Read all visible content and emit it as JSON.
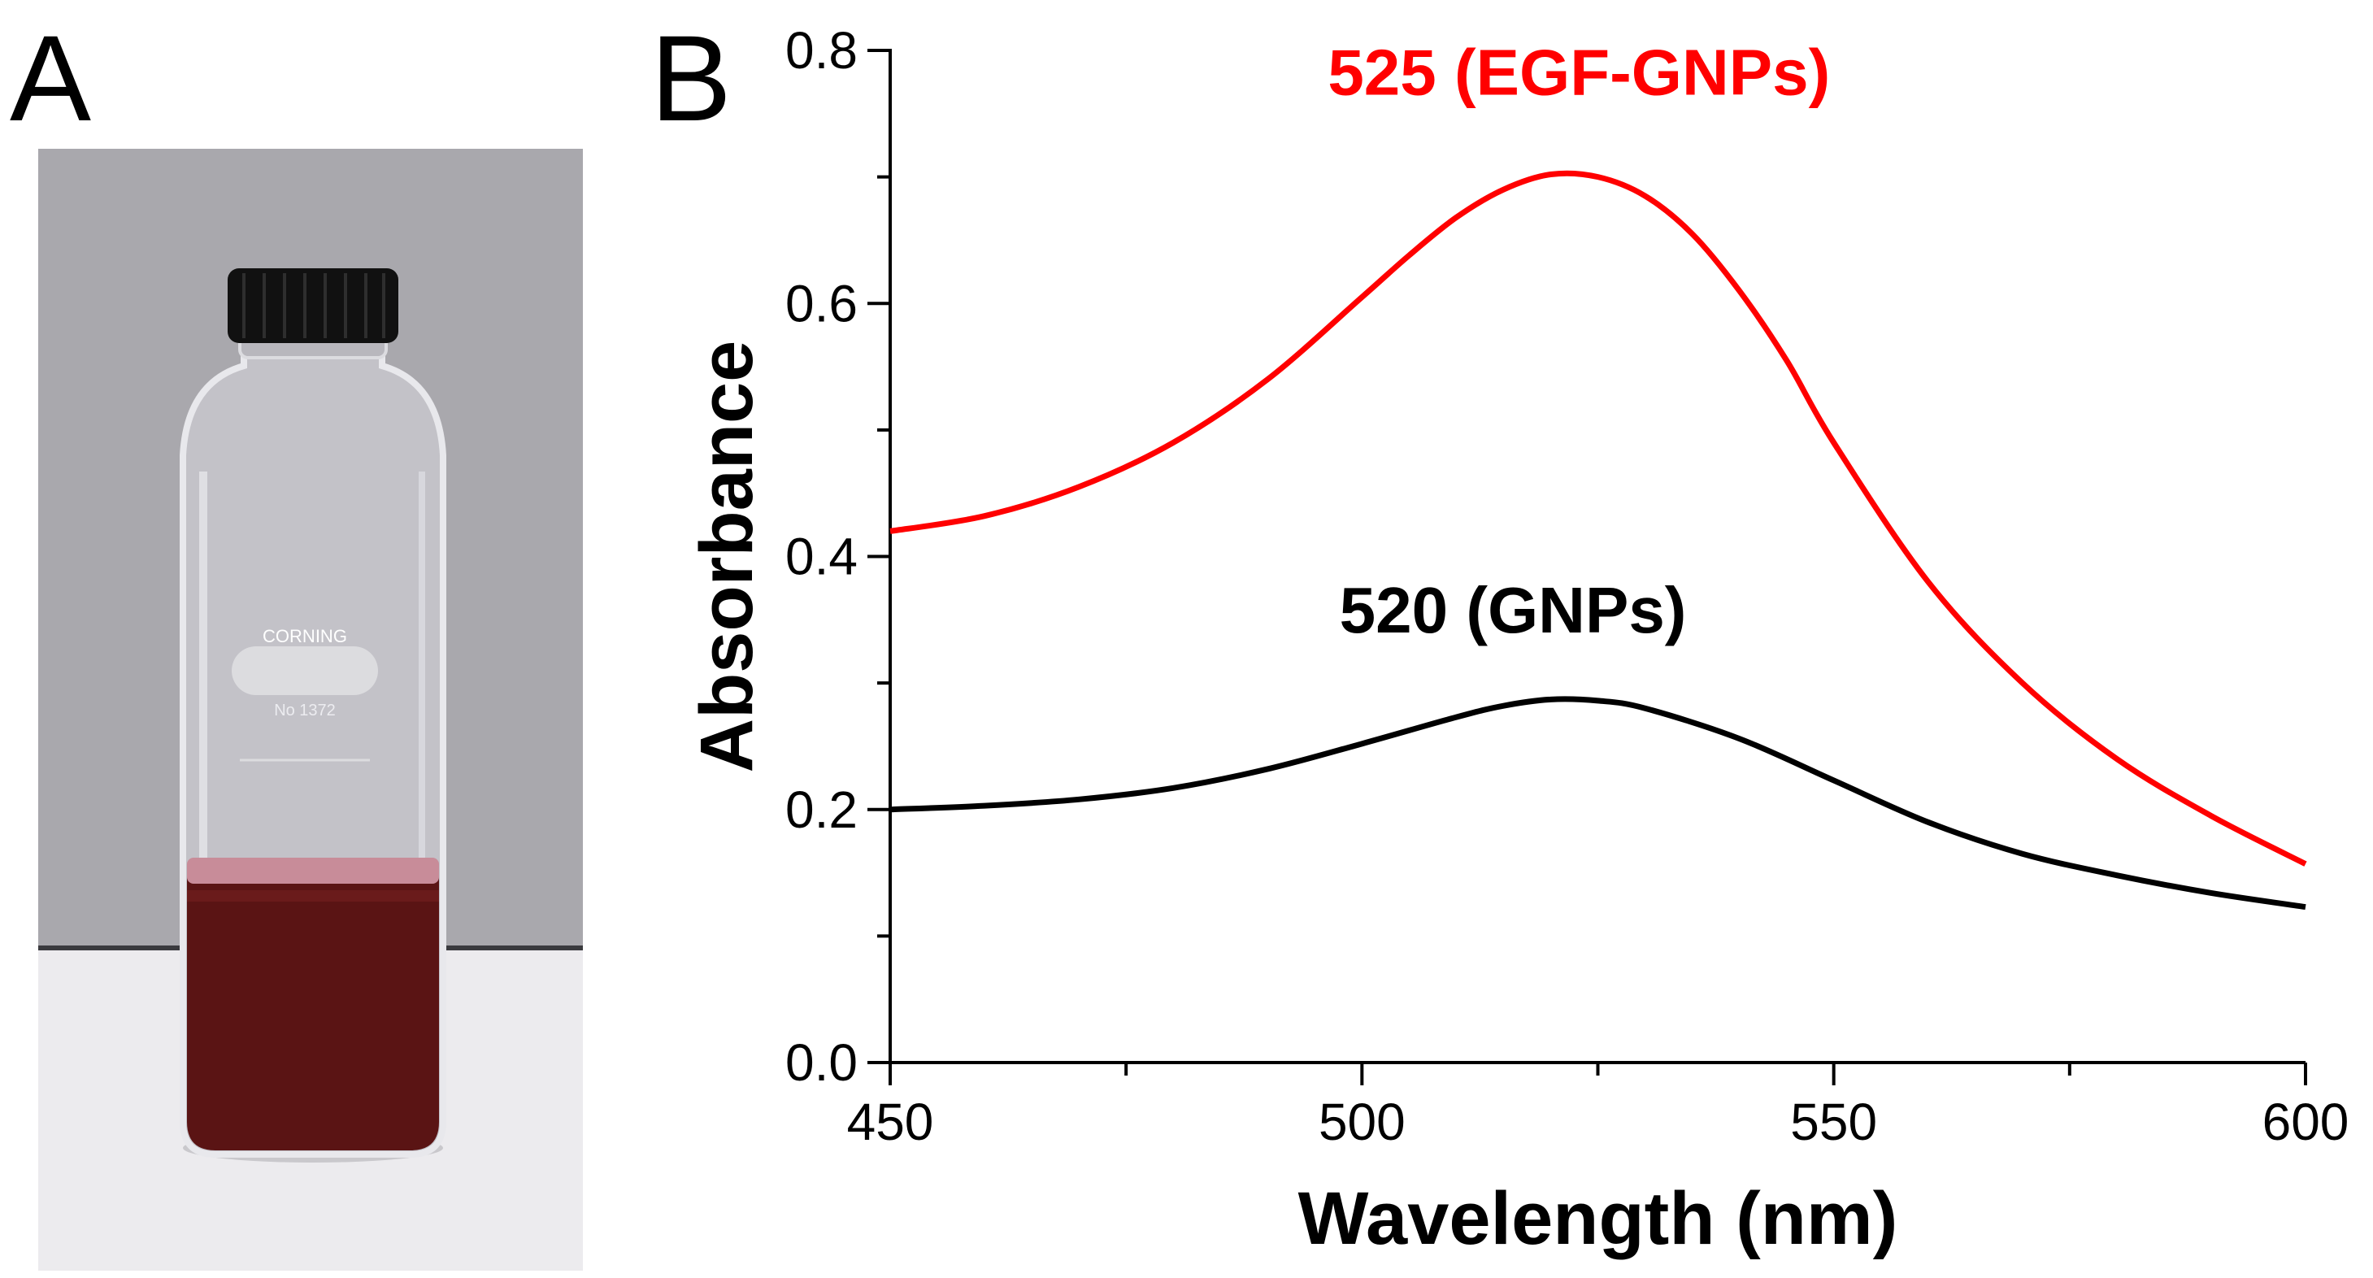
{
  "panel_a": {
    "label": "A",
    "photo_subject": "Corning glass bottle with dark red EGF-GNPs solution",
    "bottle_brand": "CORNING",
    "bottle_number": "No 1372"
  },
  "panel_b": {
    "label": "B"
  },
  "colors": {
    "egf_gnps": "#ff0000",
    "gnps": "#000000",
    "axis": "#000000",
    "photo_background": "#a9a8ad",
    "solution": "#5a1414"
  },
  "chart_data": {
    "type": "line",
    "title": "",
    "xlabel": "Wavelength (nm)",
    "ylabel": "Absorbance",
    "xlim": [
      450,
      600
    ],
    "ylim": [
      0,
      0.8
    ],
    "x_ticks": [
      450,
      500,
      550,
      600
    ],
    "x_tick_labels": [
      "450",
      "500",
      "550",
      "600"
    ],
    "x_minor_ticks": [
      475,
      525,
      575
    ],
    "y_ticks": [
      0,
      0.2,
      0.4,
      0.6,
      0.8
    ],
    "y_tick_labels": [
      "0.0",
      "0.2",
      "0.4",
      "0.6",
      "0.8"
    ],
    "y_minor_ticks": [
      0.1,
      0.3,
      0.5,
      0.7
    ],
    "grid": false,
    "series": [
      {
        "name": "EGF-GNPs",
        "color": "#ff0000",
        "x": [
          450,
          460,
          470,
          480,
          490,
          500,
          505,
          510,
          515,
          520,
          525,
          530,
          535,
          540,
          545,
          550,
          560,
          570,
          580,
          590,
          600
        ],
        "y": [
          0.42,
          0.432,
          0.455,
          0.49,
          0.54,
          0.605,
          0.638,
          0.668,
          0.69,
          0.702,
          0.7,
          0.685,
          0.655,
          0.61,
          0.555,
          0.49,
          0.38,
          0.3,
          0.24,
          0.195,
          0.157
        ]
      },
      {
        "name": "GNPs",
        "color": "#000000",
        "x": [
          450,
          460,
          470,
          480,
          490,
          500,
          510,
          515,
          520,
          525,
          530,
          540,
          550,
          560,
          570,
          580,
          590,
          600
        ],
        "y": [
          0.2,
          0.203,
          0.208,
          0.217,
          0.232,
          0.252,
          0.273,
          0.282,
          0.287,
          0.286,
          0.28,
          0.256,
          0.223,
          0.19,
          0.165,
          0.148,
          0.134,
          0.123
        ]
      }
    ],
    "annotations": [
      {
        "text": "525  (EGF-GNPs)",
        "color": "#ff0000",
        "x": 523,
        "y": 0.765
      },
      {
        "text": "520  (GNPs)",
        "color": "#000000",
        "x": 516,
        "y": 0.34
      }
    ]
  }
}
